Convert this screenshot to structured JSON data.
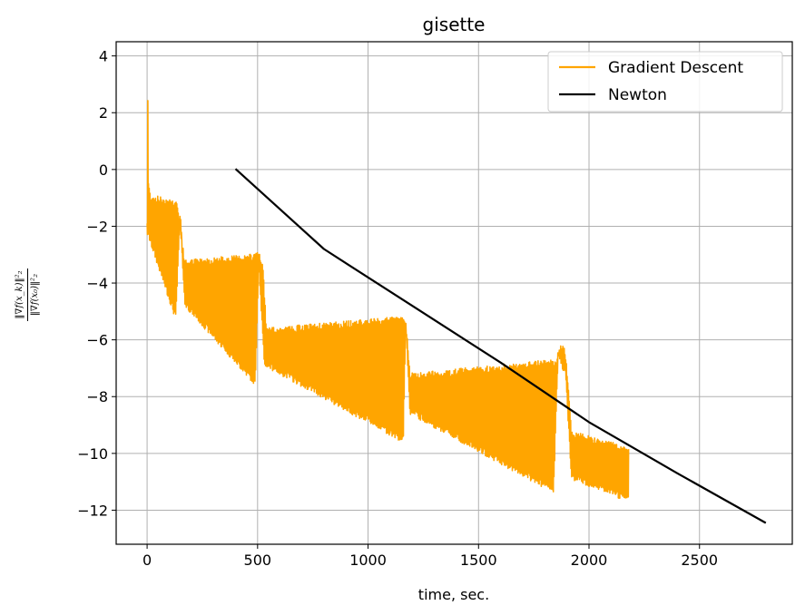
{
  "chart_data": {
    "type": "line",
    "title": "gisette",
    "xlabel": "time, sec.",
    "ylabel": {
      "numerator": "‖∇f(x_k)‖²₂",
      "denominator": "‖∇f(x₀)‖²₂"
    },
    "xlim": [
      -140,
      2920
    ],
    "ylim": [
      -13.2,
      4.5
    ],
    "xticks": [
      0,
      500,
      1000,
      1500,
      2000,
      2500
    ],
    "yticks": [
      4,
      2,
      0,
      -2,
      -4,
      -6,
      -8,
      -10,
      -12
    ],
    "grid": true,
    "legend": "top-right",
    "series": [
      {
        "name": "Gradient Descent",
        "color": "#ffa500",
        "style": "oscillating",
        "peak": [
          [
            0,
            -1.9
          ],
          [
            2,
            3.7
          ],
          [
            6,
            -0.5
          ],
          [
            15,
            -1.0
          ],
          [
            135,
            -1.2
          ],
          [
            170,
            -3.3
          ],
          [
            480,
            -3.1
          ],
          [
            500,
            -2.9
          ],
          [
            525,
            -3.5
          ],
          [
            540,
            -5.7
          ],
          [
            1150,
            -5.3
          ],
          [
            1170,
            -5.3
          ],
          [
            1190,
            -7.3
          ],
          [
            1850,
            -6.8
          ],
          [
            1870,
            -6.3
          ],
          [
            1890,
            -6.3
          ],
          [
            1910,
            -8.0
          ],
          [
            1920,
            -9.3
          ],
          [
            2180,
            -9.9
          ]
        ],
        "trough": [
          [
            0,
            -2.2
          ],
          [
            6,
            -2.3
          ],
          [
            130,
            -5.2
          ],
          [
            150,
            -1.5
          ],
          [
            170,
            -4.7
          ],
          [
            490,
            -7.5
          ],
          [
            505,
            -3.2
          ],
          [
            530,
            -6.8
          ],
          [
            1160,
            -9.5
          ],
          [
            1170,
            -5.4
          ],
          [
            1190,
            -8.5
          ],
          [
            1840,
            -11.3
          ],
          [
            1860,
            -6.5
          ],
          [
            1895,
            -7.2
          ],
          [
            1920,
            -10.8
          ],
          [
            2180,
            -11.6
          ]
        ]
      },
      {
        "name": "Newton",
        "color": "#000000",
        "style": "line",
        "x": [
          400,
          800,
          1200,
          1600,
          2000,
          2400,
          2800
        ],
        "y": [
          0.02,
          -2.8,
          -4.8,
          -6.8,
          -8.9,
          -10.7,
          -12.45
        ]
      }
    ]
  }
}
